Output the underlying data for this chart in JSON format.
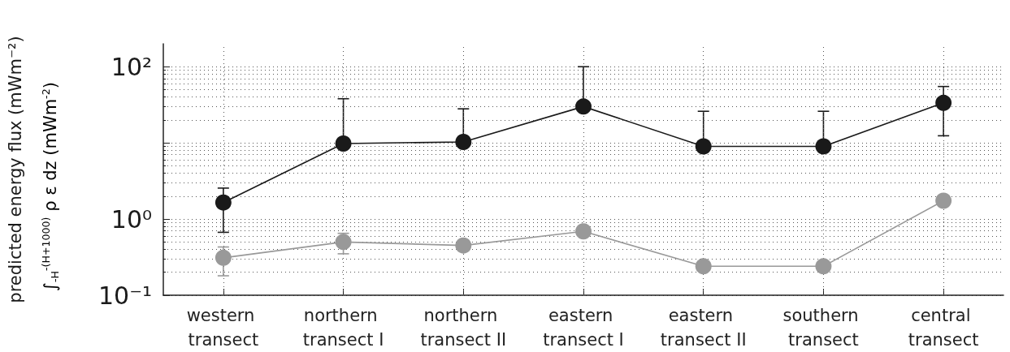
{
  "chart_data": {
    "type": "line",
    "ylabel": "predicted energy flux (mWm⁻²)",
    "annotations": [
      "∫$_{-H}$$^{-(H+1000)}$ ρ ε dz (mWm$^{-2}$)"
    ],
    "categories": [
      "western transect",
      "northern transect I",
      "northern transect II",
      "eastern transect I",
      "eastern transect II",
      "southern transect",
      "central transect"
    ],
    "series": [
      {
        "color": "#1a1a1a",
        "values": [
          1.65,
          9.8,
          10.3,
          30,
          9,
          9,
          33.5
        ],
        "errors": [
          [
            0.67,
            2.55
          ],
          [
            9.8,
            38
          ],
          [
            10.3,
            28
          ],
          [
            30,
            100
          ],
          [
            9,
            26
          ],
          [
            9,
            26
          ],
          [
            12.4,
            55
          ]
        ]
      },
      {
        "color": "#999999",
        "values": [
          0.31,
          0.5,
          0.45,
          0.69,
          0.24,
          0.24,
          1.74
        ],
        "errors": [
          [
            0.18,
            0.43
          ],
          [
            0.35,
            0.65
          ],
          null,
          null,
          null,
          null,
          null
        ]
      }
    ],
    "log": "y",
    "ylim": [
      0.1,
      200
    ],
    "yticks": [
      {
        "value": 0.1,
        "label": "10⁻¹"
      },
      {
        "value": 1,
        "label": "10⁰"
      },
      {
        "value": 10,
        "label": null
      },
      {
        "value": 100,
        "label": "10²"
      }
    ],
    "grid": true,
    "marker": "circle",
    "line_style": "solid"
  }
}
